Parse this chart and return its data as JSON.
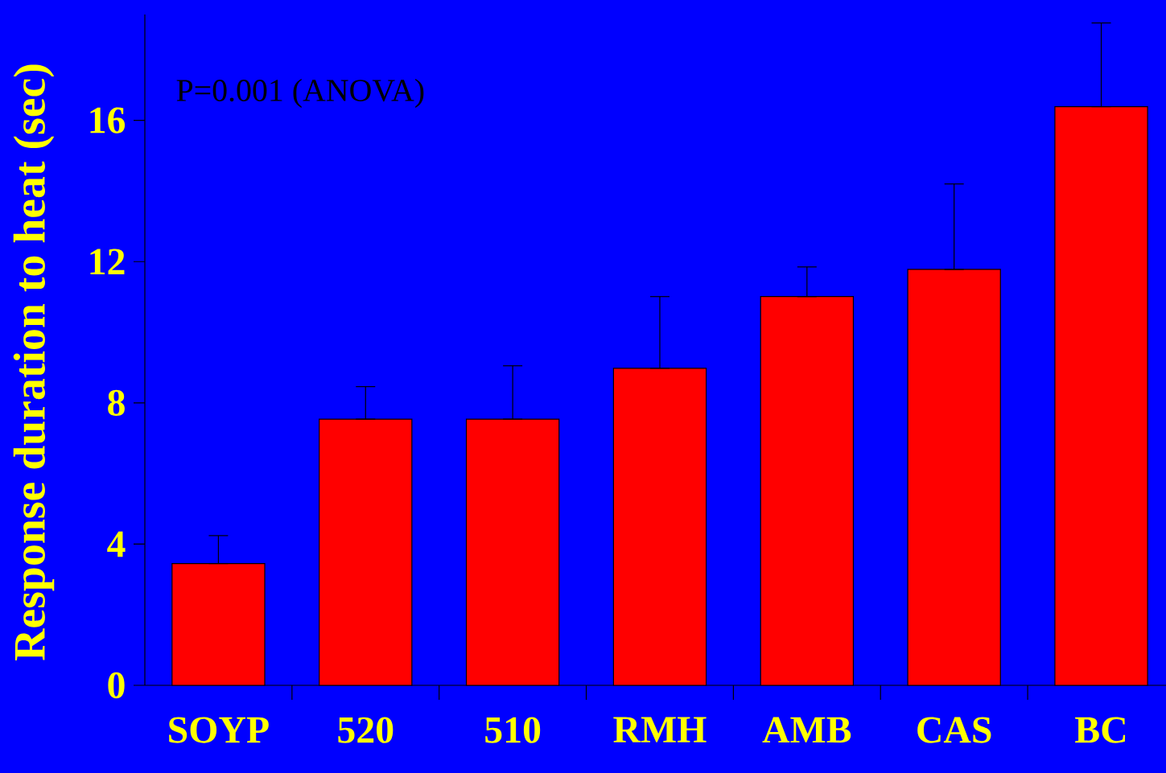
{
  "chart_data": {
    "type": "bar",
    "ylabel": "Response duration to heat (sec)",
    "categories": [
      "SOYP",
      "520",
      "510",
      "RMH",
      "AMB",
      "CAS",
      "BC"
    ],
    "values": [
      3.45,
      7.54,
      7.54,
      8.98,
      11.01,
      11.78,
      16.39
    ],
    "errors": [
      [
        3.45,
        4.24
      ],
      [
        7.54,
        8.46
      ],
      [
        7.54,
        9.05
      ],
      [
        8.98,
        11.01
      ],
      [
        11.01,
        11.85
      ],
      [
        11.78,
        14.2
      ],
      [
        16.39,
        18.76
      ]
    ],
    "color": "#ff0000",
    "ylim": [
      0,
      19
    ],
    "yticks": [
      0,
      4,
      8,
      12,
      16
    ],
    "grid": false,
    "annotations": [
      "P=0.001 (ANOVA)"
    ]
  }
}
